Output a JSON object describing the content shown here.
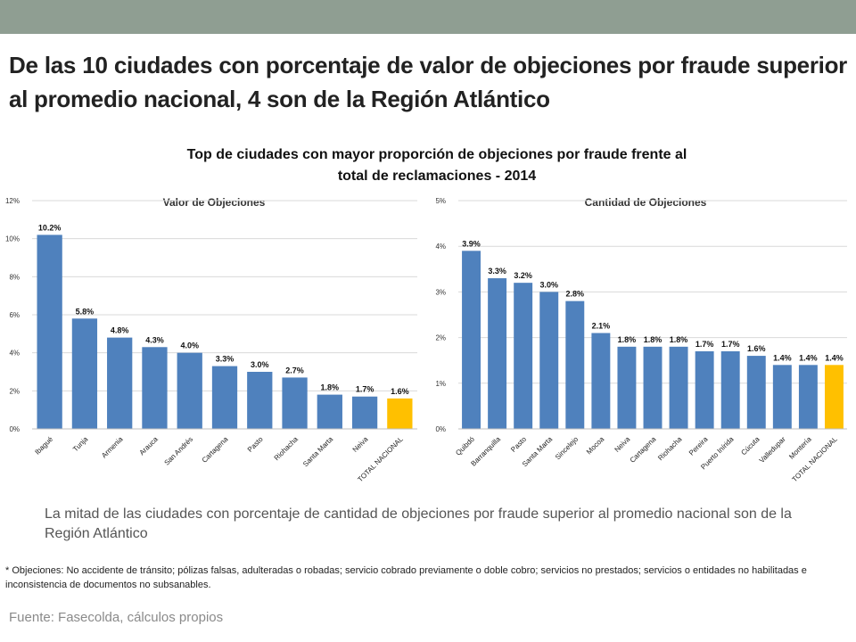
{
  "headline": "De las 10 ciudades con porcentaje de valor de objeciones por fraude superior al promedio nacional, 4 son de la Región Atlántico",
  "chart_title_line1": "Top de ciudades con mayor proporción de objeciones por fraude frente al",
  "chart_title_line2": "total de reclamaciones  - 2014",
  "colors": {
    "bar": "#4f81bd",
    "highlight": "#ffc000",
    "grid": "#d9d9d9",
    "top_bar": "#8f9e92"
  },
  "chart_data": [
    {
      "type": "bar",
      "title": "Valor de Objeciones",
      "categories": [
        "Ibagué",
        "Tunja",
        "Armenia",
        "Arauca",
        "San Andrés",
        "Cartagena",
        "Pasto",
        "Riohacha",
        "Santa Marta",
        "Neiva",
        "TOTAL NACIONAL"
      ],
      "values": [
        10.2,
        5.8,
        4.8,
        4.3,
        4.0,
        3.3,
        3.0,
        2.7,
        1.8,
        1.7,
        1.6
      ],
      "labels": [
        "10.2%",
        "5.8%",
        "4.8%",
        "4.3%",
        "4.0%",
        "3.3%",
        "3.0%",
        "2.7%",
        "1.8%",
        "1.7%",
        "1.6%"
      ],
      "highlight_category": "TOTAL NACIONAL",
      "yticks": [
        "0%",
        "2%",
        "4%",
        "6%",
        "8%",
        "10%",
        "12%"
      ],
      "ylim": [
        0,
        12
      ],
      "grid": true
    },
    {
      "type": "bar",
      "title": "Cantidad de Objeciones",
      "categories": [
        "Quibdó",
        "Barranquilla",
        "Pasto",
        "Santa Marta",
        "Sincelejo",
        "Mocoa",
        "Neiva",
        "Cartagena",
        "Riohacha",
        "Pereira",
        "Puerto Inírida",
        "Cúcuta",
        "Valledupar",
        "Montería",
        "TOTAL NACIONAL"
      ],
      "values": [
        3.9,
        3.3,
        3.2,
        3.0,
        2.8,
        2.1,
        1.8,
        1.8,
        1.8,
        1.7,
        1.7,
        1.6,
        1.4,
        1.4,
        1.4
      ],
      "labels": [
        "3.9%",
        "3.3%",
        "3.2%",
        "3.0%",
        "2.8%",
        "2.1%",
        "1.8%",
        "1.8%",
        "1.8%",
        "1.7%",
        "1.7%",
        "1.6%",
        "1.4%",
        "1.4%",
        "1.4%"
      ],
      "highlight_category": "TOTAL NACIONAL",
      "yticks": [
        "0%",
        "1%",
        "2%",
        "3%",
        "4%",
        "5%"
      ],
      "ylim": [
        0,
        5
      ],
      "grid": true
    }
  ],
  "note": "La mitad de las ciudades con porcentaje de cantidad de objeciones por fraude superior al promedio nacional son de la Región Atlántico",
  "footnote": "* Objeciones: No accidente de tránsito; pólizas falsas, adulteradas o robadas; servicio cobrado previamente o doble cobro; servicios no prestados; servicios o entidades no habilitadas e inconsistencia de documentos no subsanables.",
  "source": "Fuente: Fasecolda, cálculos propios"
}
